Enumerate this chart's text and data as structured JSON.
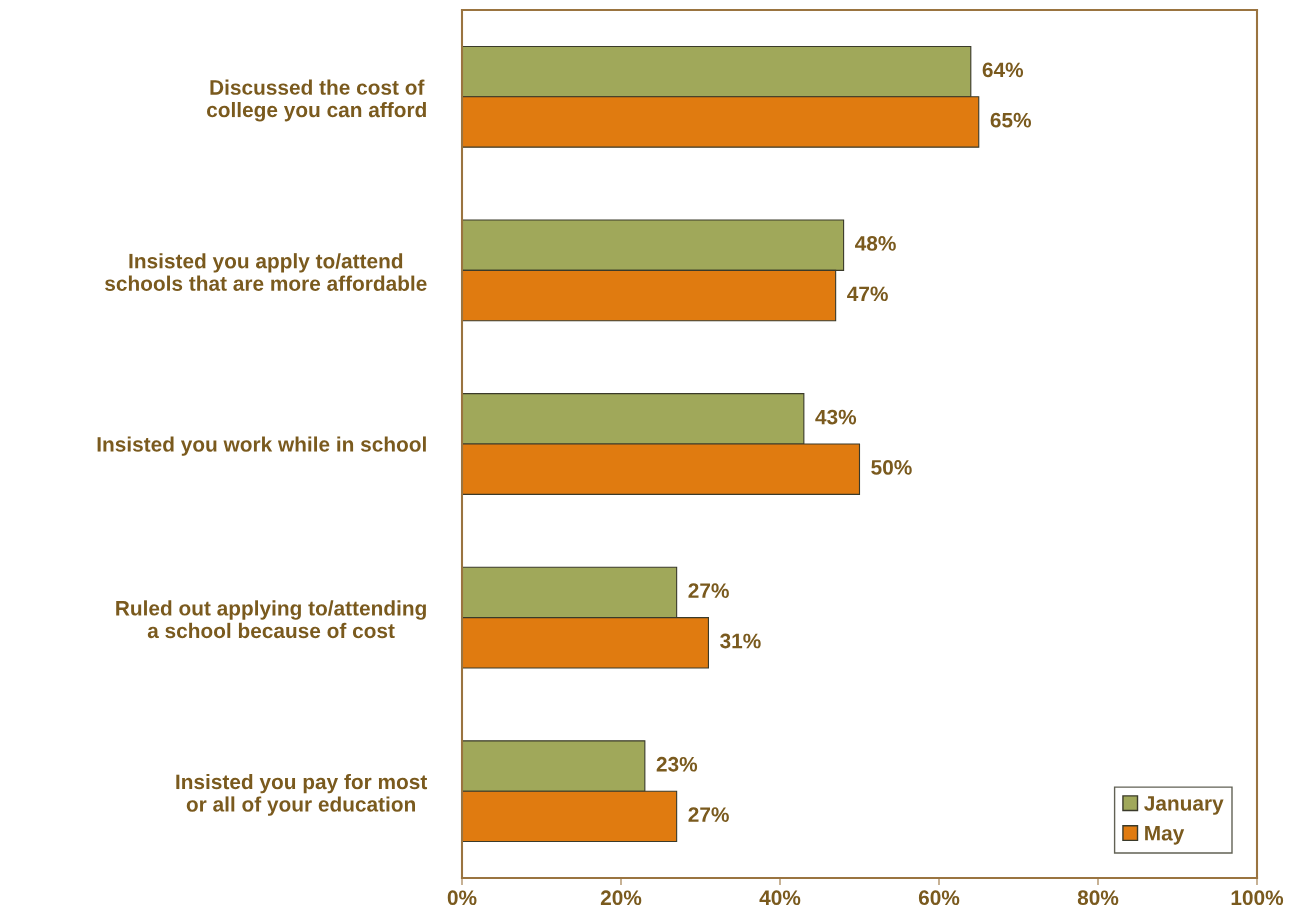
{
  "chart_data": {
    "type": "bar",
    "orientation": "horizontal",
    "categories": [
      "Discussed the cost of\ncollege you can afford",
      "Insisted you apply to/attend\nschools that are more affordable",
      "Insisted you work while in school",
      "Ruled out applying to/attending\na school because of cost",
      "Insisted you pay for most\nor all of your education"
    ],
    "series": [
      {
        "name": "January",
        "color": "#a0a85a",
        "values": [
          64,
          48,
          43,
          27,
          23
        ],
        "value_labels": [
          "64%",
          "48%",
          "43%",
          "27%",
          "23%"
        ]
      },
      {
        "name": "May",
        "color": "#e07b10",
        "values": [
          65,
          47,
          50,
          31,
          27
        ],
        "value_labels": [
          "65%",
          "47%",
          "50%",
          "31%",
          "27%"
        ]
      }
    ],
    "xlim": [
      0,
      100
    ],
    "xticks": [
      {
        "value": 0,
        "label": "0%"
      },
      {
        "value": 20,
        "label": "20%"
      },
      {
        "value": 40,
        "label": "40%"
      },
      {
        "value": 60,
        "label": "60%"
      },
      {
        "value": 80,
        "label": "80%"
      },
      {
        "value": 100,
        "label": "100%"
      }
    ],
    "grid": false,
    "legend": "bottom right"
  }
}
